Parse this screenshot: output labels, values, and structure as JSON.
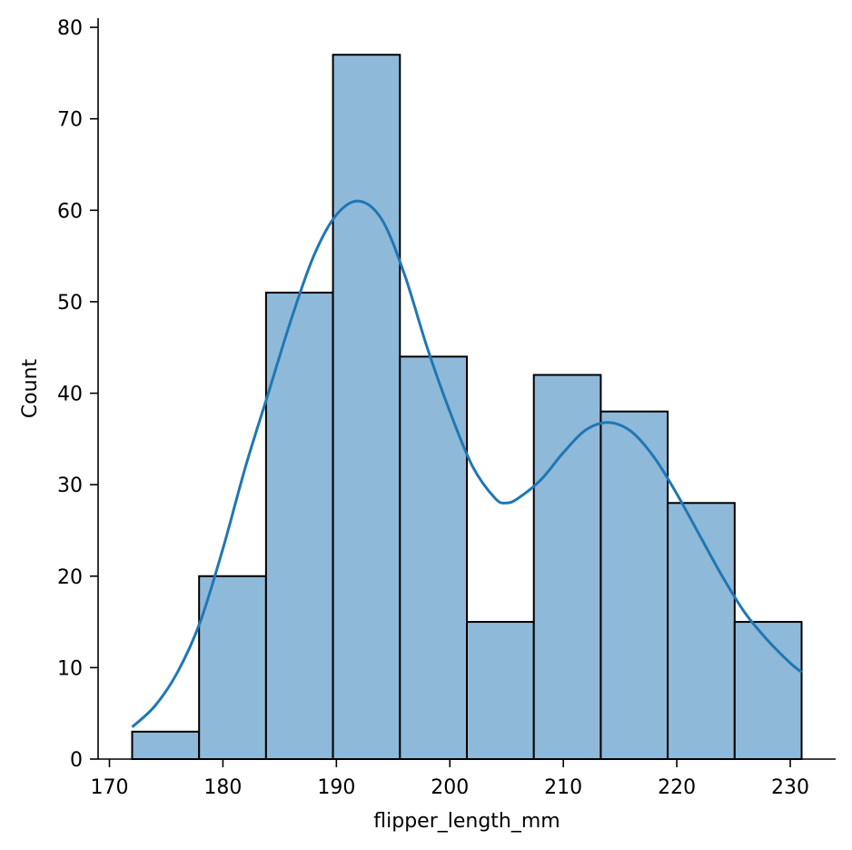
{
  "chart_data": {
    "type": "bar",
    "title": "",
    "xlabel": "flipper_length_mm",
    "ylabel": "Count",
    "bin_edges": [
      172,
      177.9,
      183.8,
      189.7,
      195.6,
      201.5,
      207.4,
      213.3,
      219.2,
      225.1,
      231
    ],
    "values": [
      3,
      20,
      51,
      77,
      44,
      15,
      42,
      38,
      28,
      15
    ],
    "xlim": [
      169,
      234
    ],
    "ylim": [
      0,
      81
    ],
    "xticks": [
      170,
      180,
      190,
      200,
      210,
      220,
      230
    ],
    "yticks": [
      0,
      10,
      20,
      30,
      40,
      50,
      60,
      70,
      80
    ],
    "kde": {
      "x": [
        172,
        174,
        176,
        178,
        180,
        182,
        184,
        186,
        188,
        190,
        192,
        194,
        196,
        198,
        200,
        202,
        204,
        205,
        206,
        208,
        210,
        212,
        214,
        216,
        218,
        220,
        222,
        224,
        226,
        228,
        230,
        231
      ],
      "y": [
        3.5,
        5.8,
        9.5,
        15,
        23,
        32,
        40,
        48,
        55,
        59.5,
        61,
        59,
        53,
        45,
        38,
        32,
        28.5,
        28,
        28.5,
        30.5,
        33.5,
        36,
        36.8,
        35.8,
        33,
        29,
        24.5,
        20,
        16,
        13,
        10.5,
        9.5
      ]
    },
    "colors": {
      "bar_fill": "#8FB9D9",
      "bar_edge": "#000000",
      "kde_line": "#1F77B4"
    },
    "grid": false
  }
}
